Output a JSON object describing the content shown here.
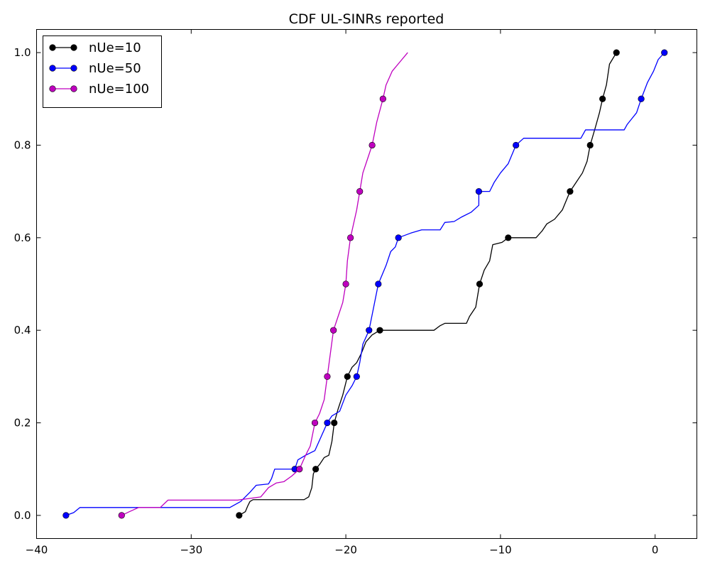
{
  "chart_data": {
    "type": "line",
    "title": "CDF UL-SINRs reported",
    "xlabel": "",
    "ylabel": "",
    "xlim": [
      -40,
      2.7
    ],
    "ylim": [
      -0.05,
      1.05
    ],
    "xticks": [
      -40,
      -30,
      -20,
      -10,
      0
    ],
    "yticks": [
      0.0,
      0.2,
      0.4,
      0.6,
      0.8,
      1.0
    ],
    "xtick_labels": [
      "−40",
      "−30",
      "−20",
      "−10",
      "0"
    ],
    "ytick_labels": [
      "0.0",
      "0.2",
      "0.4",
      "0.6",
      "0.8",
      "1.0"
    ],
    "grid": false,
    "legend_position": "upper-left",
    "series": [
      {
        "name": "nUe=10",
        "color": "#000000",
        "line": [
          [
            -26.9,
            0.0
          ],
          [
            -26.5,
            0.008
          ],
          [
            -26.35,
            0.02
          ],
          [
            -26.2,
            0.03
          ],
          [
            -26.0,
            0.034
          ],
          [
            -23.5,
            0.034
          ],
          [
            -22.7,
            0.034
          ],
          [
            -22.4,
            0.04
          ],
          [
            -22.2,
            0.06
          ],
          [
            -22.1,
            0.09
          ],
          [
            -21.95,
            0.1
          ],
          [
            -21.7,
            0.11
          ],
          [
            -21.4,
            0.125
          ],
          [
            -21.1,
            0.13
          ],
          [
            -20.9,
            0.16
          ],
          [
            -20.75,
            0.2
          ],
          [
            -20.5,
            0.23
          ],
          [
            -20.2,
            0.26
          ],
          [
            -19.9,
            0.3
          ],
          [
            -19.6,
            0.32
          ],
          [
            -19.3,
            0.33
          ],
          [
            -19.0,
            0.35
          ],
          [
            -18.7,
            0.375
          ],
          [
            -18.3,
            0.39
          ],
          [
            -17.8,
            0.4
          ],
          [
            -14.3,
            0.4
          ],
          [
            -13.9,
            0.41
          ],
          [
            -13.6,
            0.415
          ],
          [
            -12.2,
            0.415
          ],
          [
            -12.0,
            0.43
          ],
          [
            -11.6,
            0.45
          ],
          [
            -11.35,
            0.5
          ],
          [
            -11.05,
            0.53
          ],
          [
            -10.7,
            0.55
          ],
          [
            -10.5,
            0.585
          ],
          [
            -9.9,
            0.59
          ],
          [
            -9.5,
            0.6
          ],
          [
            -7.7,
            0.6
          ],
          [
            -7.3,
            0.615
          ],
          [
            -7.0,
            0.63
          ],
          [
            -6.5,
            0.64
          ],
          [
            -6.0,
            0.66
          ],
          [
            -5.75,
            0.68
          ],
          [
            -5.5,
            0.7
          ],
          [
            -5.1,
            0.72
          ],
          [
            -4.7,
            0.74
          ],
          [
            -4.4,
            0.765
          ],
          [
            -4.2,
            0.8
          ],
          [
            -3.85,
            0.84
          ],
          [
            -3.6,
            0.87
          ],
          [
            -3.4,
            0.9
          ],
          [
            -3.15,
            0.93
          ],
          [
            -2.95,
            0.975
          ],
          [
            -2.5,
            1.0
          ]
        ],
        "markers": [
          [
            -26.9,
            0.0
          ],
          [
            -21.95,
            0.1
          ],
          [
            -20.75,
            0.2
          ],
          [
            -19.9,
            0.3
          ],
          [
            -17.8,
            0.4
          ],
          [
            -11.35,
            0.5
          ],
          [
            -9.5,
            0.6
          ],
          [
            -5.5,
            0.7
          ],
          [
            -4.2,
            0.8
          ],
          [
            -3.4,
            0.9
          ],
          [
            -2.5,
            1.0
          ]
        ]
      },
      {
        "name": "nUe=50",
        "color": "#0000ff",
        "line": [
          [
            -38.1,
            0.0
          ],
          [
            -37.6,
            0.006
          ],
          [
            -37.2,
            0.017
          ],
          [
            -27.5,
            0.017
          ],
          [
            -26.8,
            0.03
          ],
          [
            -26.5,
            0.04
          ],
          [
            -26.2,
            0.05
          ],
          [
            -25.8,
            0.065
          ],
          [
            -25.0,
            0.068
          ],
          [
            -24.8,
            0.08
          ],
          [
            -24.6,
            0.1
          ],
          [
            -23.3,
            0.1
          ],
          [
            -23.1,
            0.12
          ],
          [
            -22.6,
            0.13
          ],
          [
            -22.0,
            0.14
          ],
          [
            -21.6,
            0.17
          ],
          [
            -21.2,
            0.2
          ],
          [
            -20.9,
            0.215
          ],
          [
            -20.4,
            0.225
          ],
          [
            -20.0,
            0.26
          ],
          [
            -19.6,
            0.28
          ],
          [
            -19.3,
            0.3
          ],
          [
            -19.1,
            0.33
          ],
          [
            -18.9,
            0.37
          ],
          [
            -18.5,
            0.4
          ],
          [
            -18.2,
            0.45
          ],
          [
            -17.9,
            0.5
          ],
          [
            -17.4,
            0.54
          ],
          [
            -17.1,
            0.57
          ],
          [
            -16.8,
            0.58
          ],
          [
            -16.6,
            0.6
          ],
          [
            -15.8,
            0.61
          ],
          [
            -15.1,
            0.617
          ],
          [
            -13.9,
            0.617
          ],
          [
            -13.6,
            0.633
          ],
          [
            -13.0,
            0.635
          ],
          [
            -12.5,
            0.645
          ],
          [
            -11.9,
            0.655
          ],
          [
            -11.4,
            0.67
          ],
          [
            -11.4,
            0.7
          ],
          [
            -10.7,
            0.7
          ],
          [
            -10.4,
            0.72
          ],
          [
            -10.0,
            0.74
          ],
          [
            -9.5,
            0.76
          ],
          [
            -9.0,
            0.8
          ],
          [
            -8.5,
            0.815
          ],
          [
            -4.8,
            0.815
          ],
          [
            -4.5,
            0.833
          ],
          [
            -2.0,
            0.833
          ],
          [
            -1.8,
            0.845
          ],
          [
            -1.2,
            0.87
          ],
          [
            -0.9,
            0.9
          ],
          [
            -0.5,
            0.935
          ],
          [
            -0.1,
            0.96
          ],
          [
            0.2,
            0.985
          ],
          [
            0.6,
            1.0
          ]
        ],
        "markers": [
          [
            -38.1,
            0.0
          ],
          [
            -23.3,
            0.1
          ],
          [
            -21.2,
            0.2
          ],
          [
            -19.3,
            0.3
          ],
          [
            -18.5,
            0.4
          ],
          [
            -17.9,
            0.5
          ],
          [
            -16.6,
            0.6
          ],
          [
            -11.4,
            0.7
          ],
          [
            -9.0,
            0.8
          ],
          [
            -0.9,
            0.9
          ],
          [
            0.6,
            1.0
          ]
        ]
      },
      {
        "name": "nUe=100",
        "color": "#bf00bf",
        "line": [
          [
            -34.5,
            0.0
          ],
          [
            -34.0,
            0.008
          ],
          [
            -33.4,
            0.017
          ],
          [
            -32.0,
            0.017
          ],
          [
            -31.5,
            0.033
          ],
          [
            -27.0,
            0.033
          ],
          [
            -25.5,
            0.04
          ],
          [
            -25.0,
            0.06
          ],
          [
            -24.5,
            0.07
          ],
          [
            -24.0,
            0.073
          ],
          [
            -23.5,
            0.085
          ],
          [
            -23.0,
            0.1
          ],
          [
            -22.6,
            0.13
          ],
          [
            -22.3,
            0.15
          ],
          [
            -22.0,
            0.2
          ],
          [
            -21.7,
            0.22
          ],
          [
            -21.4,
            0.25
          ],
          [
            -21.2,
            0.3
          ],
          [
            -21.0,
            0.35
          ],
          [
            -20.8,
            0.4
          ],
          [
            -20.5,
            0.43
          ],
          [
            -20.2,
            0.46
          ],
          [
            -20.0,
            0.5
          ],
          [
            -19.9,
            0.55
          ],
          [
            -19.7,
            0.6
          ],
          [
            -19.5,
            0.63
          ],
          [
            -19.3,
            0.66
          ],
          [
            -19.1,
            0.7
          ],
          [
            -18.9,
            0.74
          ],
          [
            -18.6,
            0.77
          ],
          [
            -18.3,
            0.8
          ],
          [
            -18.0,
            0.85
          ],
          [
            -17.6,
            0.9
          ],
          [
            -17.4,
            0.93
          ],
          [
            -17.0,
            0.96
          ],
          [
            -16.5,
            0.98
          ],
          [
            -16.0,
            1.0
          ]
        ],
        "markers": [
          [
            -34.5,
            0.0
          ],
          [
            -23.0,
            0.1
          ],
          [
            -22.0,
            0.2
          ],
          [
            -21.2,
            0.3
          ],
          [
            -20.8,
            0.4
          ],
          [
            -20.0,
            0.5
          ],
          [
            -19.7,
            0.6
          ],
          [
            -19.1,
            0.7
          ],
          [
            -18.3,
            0.8
          ],
          [
            -17.6,
            0.9
          ]
        ]
      }
    ]
  }
}
